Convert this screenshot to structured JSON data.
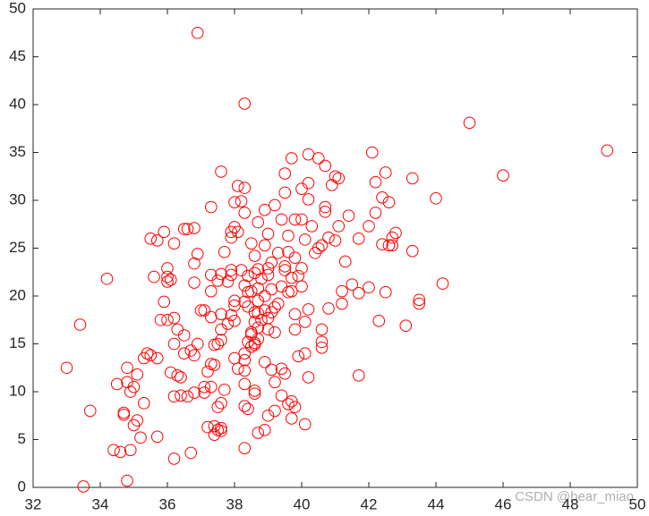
{
  "chart_data": {
    "type": "scatter",
    "x": [
      36.9,
      38.3,
      45,
      49.1,
      46,
      44,
      44.2,
      43.5,
      43.5,
      43.1,
      43.3,
      43.3,
      42.5,
      42.1,
      42.2,
      42.4,
      42.6,
      42.2,
      42,
      42.8,
      42.7,
      42.6,
      42.4,
      42.7,
      42.3,
      42.5,
      42,
      41.7,
      41.5,
      41.2,
      41.7,
      41.2,
      41.3,
      41,
      41.1,
      41.4,
      41.7,
      40.8,
      40.7,
      40.7,
      40.9,
      41,
      41.1,
      40.7,
      40.5,
      40.2,
      40,
      40.2,
      40.2,
      40,
      40.3,
      40.5,
      40.6,
      40.4,
      40.1,
      39.8,
      39.6,
      39.4,
      39.5,
      39.5,
      39.7,
      39.2,
      38.9,
      38.7,
      39,
      38.9,
      39.3,
      39.6,
      39.8,
      39.1,
      39.5,
      39.5,
      40,
      39.9,
      39.7,
      39.4,
      40,
      39.7,
      39.6,
      39.3,
      39.2,
      38.9,
      39,
      38.8,
      38.7,
      39.1,
      38.6,
      38.7,
      39,
      38.7,
      38.6,
      38.5,
      38.5,
      38.4,
      38.6,
      38.5,
      38.3,
      38.3,
      38,
      38.1,
      38.3,
      38.6,
      38.3,
      38.4,
      38.3,
      38.7,
      38.9,
      39,
      39.2,
      39.6,
      39.7,
      39.8,
      39.7,
      40.1,
      39.4,
      39.5,
      39.4,
      39.1,
      39.2,
      40.2,
      40.1,
      40.6,
      40.6,
      40.6,
      40.1,
      40.2,
      39.8,
      40.8,
      39.8,
      39.9,
      38.5,
      38.4,
      38.3,
      38.3,
      38,
      38,
      38,
      37.8,
      37.9,
      37.6,
      37.5,
      37.3,
      37.1,
      37,
      37.6,
      37.4,
      37.3,
      37.4,
      37.2,
      37.3,
      37.1,
      37.1,
      37.7,
      37.5,
      37.6,
      37.4,
      37.5,
      37.6,
      37.4,
      37.6,
      37.2,
      36.8,
      36.6,
      36.7,
      36.2,
      36.2,
      36.4,
      36.4,
      36.3,
      36.1,
      35.7,
      35.4,
      35.3,
      35.5,
      35.1,
      34.8,
      34.5,
      34.8,
      34.9,
      35,
      34.7,
      34.7,
      35,
      35.1,
      35.3,
      35.2,
      35.7,
      34.4,
      34.6,
      34.9,
      34.8,
      33.5,
      33,
      33.7,
      33.4,
      34.2,
      35.8,
      35.9,
      36,
      36.2,
      36.3,
      36.5,
      36.2,
      36.5,
      36.7,
      36.8,
      36.9,
      36,
      36,
      36,
      35.6,
      36.1,
      35.5,
      35.7,
      35.9,
      36.2,
      36.5,
      36.6,
      36.8,
      36.8,
      36.9,
      36.8,
      37.3,
      37.5,
      37.3,
      37.6,
      37.7,
      37.9,
      37.9,
      37.6,
      37.8,
      37.3,
      37.6,
      37.9,
      38.1,
      37.9,
      38,
      38,
      38.2,
      38.1,
      38.3,
      38.3,
      38.5,
      38.6,
      38.6,
      38.7,
      38.2,
      38.4,
      38.8,
      39,
      39,
      39.1,
      38.7,
      38.9,
      38.7,
      38.4,
      38.6,
      39.2,
      38.9,
      38.3,
      38.6
    ],
    "values": [
      47.5,
      40.1,
      38.1,
      35.2,
      32.6,
      30.2,
      21.3,
      19.6,
      19.2,
      16.9,
      24.7,
      32.3,
      32.9,
      35,
      31.9,
      30.3,
      29.8,
      28.7,
      27.3,
      26.6,
      26.1,
      25.3,
      25.4,
      25.3,
      17.4,
      20.4,
      20.9,
      20.3,
      21.2,
      20.5,
      11.7,
      19.2,
      23.6,
      25.8,
      27.3,
      28.4,
      26,
      26.1,
      28.8,
      29.3,
      31.6,
      32.5,
      32.3,
      33.6,
      34.4,
      34.8,
      31.2,
      31.8,
      30.1,
      28,
      27.3,
      25,
      25.3,
      24.5,
      25.9,
      28,
      26.3,
      28,
      30.8,
      32.8,
      34.4,
      29.5,
      29,
      27.7,
      26.5,
      25.3,
      24.5,
      24.6,
      24,
      23.5,
      23.1,
      22.7,
      22.9,
      22.1,
      21.9,
      21,
      21,
      20.5,
      20.4,
      19.2,
      18.8,
      18.5,
      17.7,
      17.5,
      18.2,
      18.3,
      17.3,
      16.7,
      16.5,
      15.5,
      15.1,
      16,
      16.2,
      15.2,
      14.9,
      14.7,
      14,
      13.3,
      13.5,
      12.4,
      10.8,
      10.1,
      8.5,
      8.2,
      4.1,
      5.7,
      6,
      7.5,
      8,
      8.7,
      9,
      8.4,
      7.2,
      6.6,
      9.6,
      11.9,
      12.4,
      12.3,
      11,
      11.5,
      14,
      14.6,
      15.2,
      16.5,
      17.3,
      18.6,
      18.1,
      18.7,
      16.5,
      13.7,
      20.5,
      20.4,
      21.1,
      19.4,
      19.5,
      19,
      17.4,
      17.1,
      18,
      16.5,
      15,
      17.8,
      18.5,
      18.5,
      15.4,
      14.9,
      12.9,
      12.8,
      12.1,
      10.5,
      10.5,
      9.9,
      10.2,
      8.4,
      8.8,
      6.4,
      6,
      6.2,
      5.5,
      5.9,
      6.3,
      9.9,
      9.5,
      3.6,
      3,
      9.5,
      9.6,
      11.5,
      11.7,
      12,
      13.5,
      14,
      13.5,
      13.8,
      11.8,
      12.5,
      10.8,
      11,
      10,
      10.5,
      7.8,
      7.6,
      6.5,
      7,
      8.8,
      5.2,
      5.3,
      3.9,
      3.7,
      3.9,
      0.7,
      0.1,
      12.5,
      8,
      17,
      21.8,
      17.5,
      19.4,
      17.5,
      17.7,
      16.5,
      15.9,
      15,
      14,
      14.3,
      13.8,
      15,
      22.9,
      22,
      21.5,
      22,
      21.7,
      26,
      25.8,
      26.7,
      25.5,
      27,
      27,
      27.1,
      23.4,
      24.4,
      21.4,
      20.5,
      21.6,
      22.2,
      22.3,
      24.6,
      22.7,
      22.2,
      18.1,
      21.5,
      29.3,
      33,
      26.7,
      26.7,
      26.1,
      27.2,
      29.8,
      29.9,
      31.5,
      31.3,
      28.7,
      25.5,
      24.2,
      22.4,
      22.8,
      22.7,
      22.1,
      21.8,
      22.2,
      22.9,
      20.7,
      20.8,
      20,
      19.5,
      18.9,
      18.3,
      16.2,
      13.1,
      12.2,
      9.8
    ],
    "color": "#ff0000",
    "marker": "open-circle",
    "xlim": [
      32,
      50
    ],
    "xticks": [
      32,
      34,
      36,
      38,
      40,
      42,
      44,
      46,
      48,
      50
    ],
    "ylim": [
      0,
      50
    ],
    "yticks": [
      0,
      5,
      10,
      15,
      20,
      25,
      30,
      35,
      40,
      45,
      50
    ],
    "box": true,
    "watermark": "CSDN @bear_miao"
  }
}
